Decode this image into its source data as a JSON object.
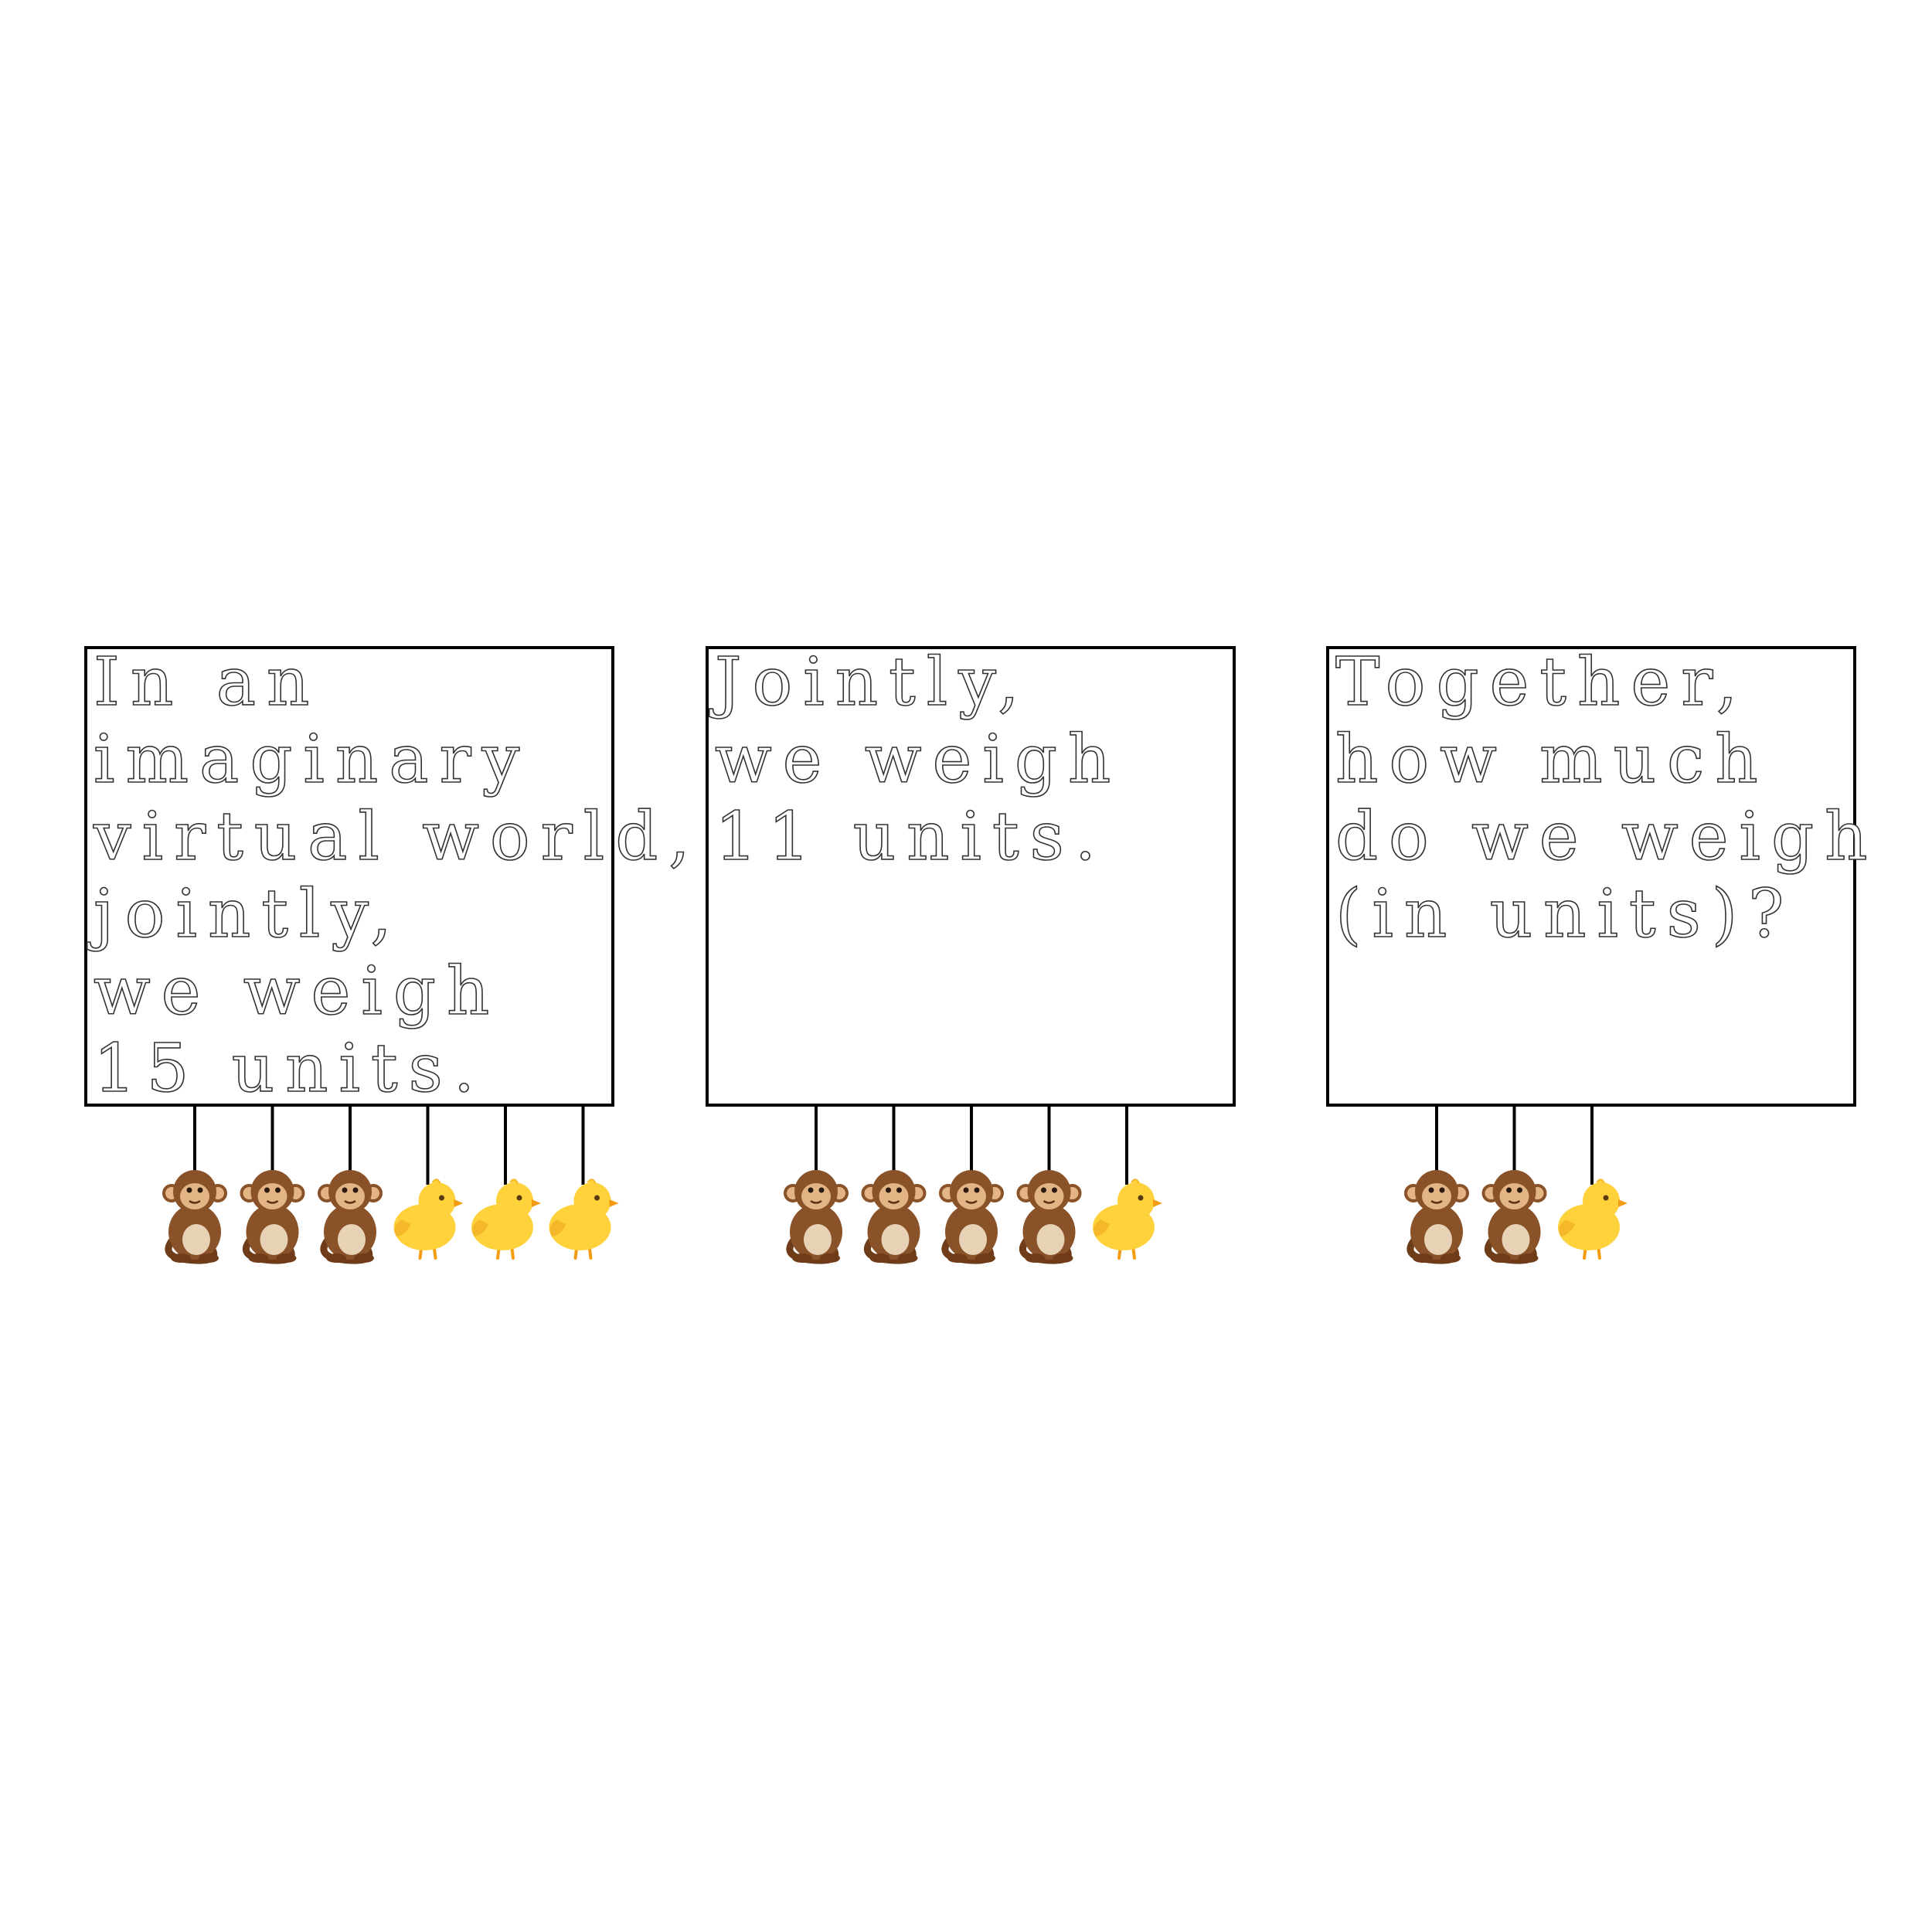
{
  "panels": [
    {
      "lines": [
        "In an",
        "imaginary",
        "virtual world,",
        "jointly,",
        "we weigh",
        "15 units."
      ],
      "items": [
        "monkey",
        "monkey",
        "monkey",
        "chick",
        "chick",
        "chick"
      ]
    },
    {
      "lines": [
        "Jointly,",
        "we weigh",
        "11 units."
      ],
      "items": [
        "monkey",
        "monkey",
        "monkey",
        "monkey",
        "chick"
      ]
    },
    {
      "lines": [
        "Together,",
        "how much",
        "do we weigh",
        "(in units)?"
      ],
      "items": [
        "monkey",
        "monkey",
        "chick"
      ]
    }
  ],
  "colors": {
    "monkey_fur": "#8a5228",
    "monkey_face": "#e3b585",
    "chick_body": "#ffd23c",
    "chick_beak": "#f39c12"
  }
}
